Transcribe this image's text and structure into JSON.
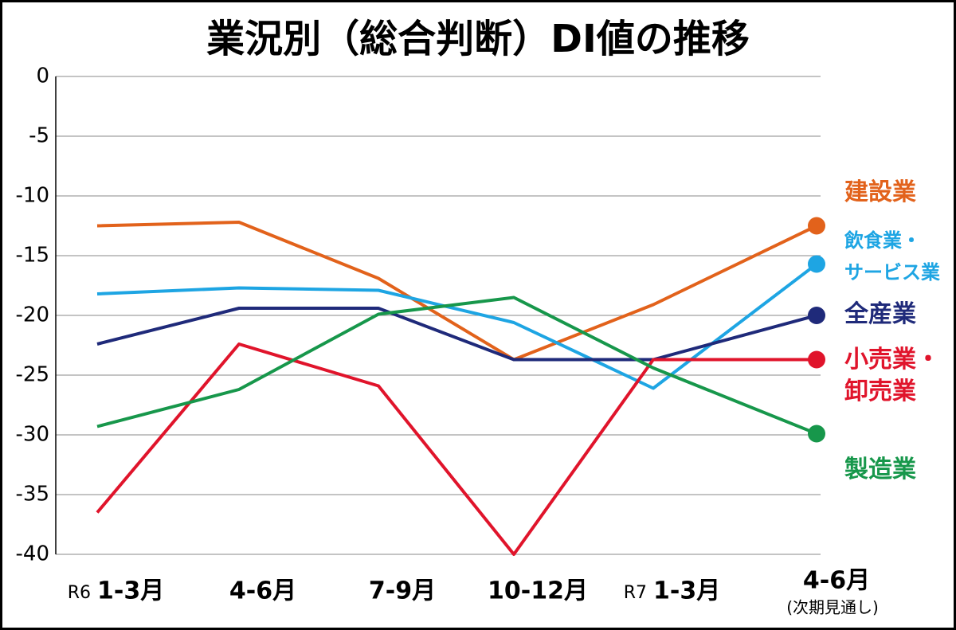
{
  "chart_data": {
    "type": "line",
    "title": "業況別（総合判断）DI値の推移",
    "categories": [
      "1-3月",
      "4-6月",
      "7-9月",
      "10-12月",
      "1-3月",
      "4-6月"
    ],
    "period_labels": [
      "R6",
      null,
      null,
      null,
      "R7",
      null
    ],
    "category_notes": [
      null,
      null,
      null,
      null,
      null,
      "(次期見通し)"
    ],
    "series": [
      {
        "name": "建設業",
        "color": "#e2621b",
        "values": [
          -12.5,
          -12.2,
          -16.9,
          -23.7,
          -19.1,
          -12.5
        ]
      },
      {
        "name": "飲食業・\nサービス業",
        "color": "#1ea5e3",
        "values": [
          -18.2,
          -17.7,
          -17.9,
          -20.6,
          -26.1,
          -15.7
        ]
      },
      {
        "name": "全産業",
        "color": "#1f2a7a",
        "values": [
          -22.4,
          -19.4,
          -19.4,
          -23.7,
          -23.7,
          -20.0
        ]
      },
      {
        "name": "小売業・\n卸売業",
        "color": "#e0142b",
        "values": [
          -36.5,
          -22.4,
          -25.9,
          -40.0,
          -23.7,
          -23.7
        ]
      },
      {
        "name": "製造業",
        "color": "#17974b",
        "values": [
          -29.3,
          -26.2,
          -19.9,
          -18.5,
          -24.4,
          -29.9
        ]
      }
    ],
    "ylim": [
      -40,
      0
    ],
    "yticks": [
      0,
      -5,
      -10,
      -15,
      -20,
      -25,
      -30,
      -35,
      -40
    ],
    "grid": true
  }
}
